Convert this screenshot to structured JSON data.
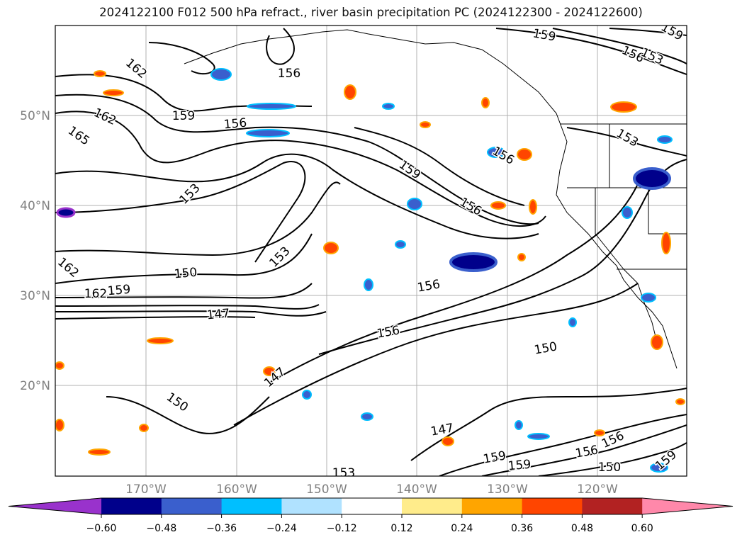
{
  "title": "2024122100 F012 500 hPa refract., river basin precipitation PC (2024122300 - 2024122600)",
  "lat_labels": [
    "50°N",
    "40°N",
    "30°N",
    "20°N"
  ],
  "lon_labels": [
    "170°W",
    "160°W",
    "150°W",
    "140°W",
    "130°W",
    "120°W"
  ],
  "contour_labels": [
    "162",
    "162",
    "165",
    "159",
    "156",
    "156",
    "159",
    "156",
    "153",
    "159",
    "159",
    "156",
    "156",
    "153",
    "150",
    "162",
    "159",
    "153",
    "147",
    "156",
    "156",
    "153",
    "150",
    "150",
    "147",
    "147",
    "153",
    "159",
    "159",
    "156",
    "156",
    "150",
    "159",
    "162"
  ],
  "colorbar": {
    "ticks": [
      "−0.60",
      "−0.48",
      "−0.36",
      "−0.24",
      "−0.12",
      "0.12",
      "0.24",
      "0.36",
      "0.48",
      "0.60"
    ],
    "colors": [
      "#9932cc",
      "#00008b",
      "#3a5fcd",
      "#00bfff",
      "#b0e2ff",
      "#ffffff",
      "#ffec8b",
      "#ffa500",
      "#ff4500",
      "#b22222",
      "#ff88aa"
    ]
  },
  "colors": {
    "contour": "#000000",
    "grid": "#b0b0b0",
    "negative_shade": "#3a5fcd",
    "positive_shade": "#ff4500"
  }
}
